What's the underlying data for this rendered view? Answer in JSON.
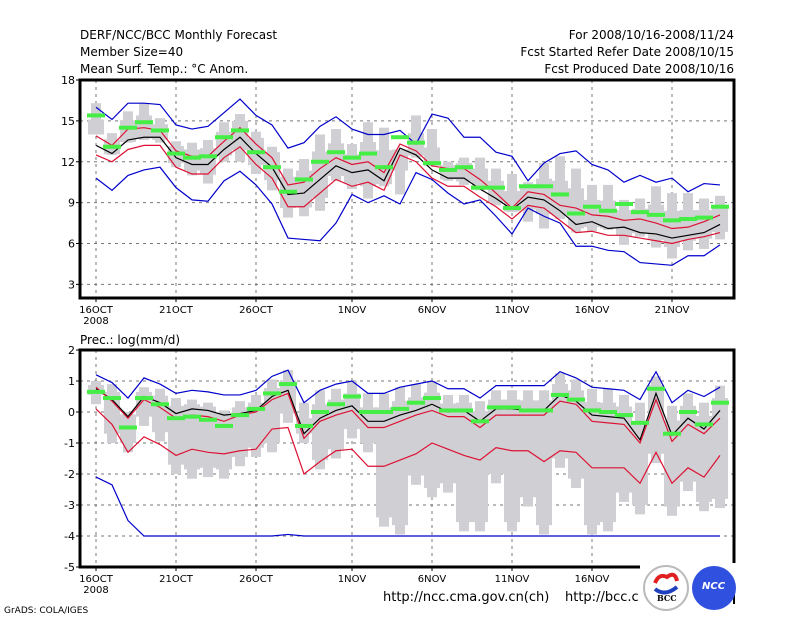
{
  "header": {
    "title": "DERF/NCC/BCC Monthly Forecast",
    "member_size": "Member Size=40",
    "variable": "Mean Surf. Temp.: °C Anom.",
    "period": "For 2008/10/16-2008/11/24",
    "started": "Fcst Started Refer Date 2008/10/15",
    "produced": "Fcst Produced Date 2008/10/16"
  },
  "footer": {
    "grads": "GrADS: COLA/IGES",
    "url_ncc": "http://ncc.cma.gov.cn(ch)",
    "url_bcc": "http://bcc.c",
    "logo_bcc": "BCC",
    "logo_ncc": "NCC"
  },
  "colors": {
    "max_min": "#0000cc",
    "percentile": "#dd1133",
    "median": "#000000",
    "ensemble_mean": "#44ee44",
    "box": "#d0d0d4"
  },
  "chart_data": [
    {
      "type": "line",
      "title": "Mean Surf. Temp.: °C Anom.",
      "xlabel": "",
      "ylabel": "°C",
      "ylim": [
        2,
        18
      ],
      "yticks": [
        3,
        6,
        9,
        12,
        15,
        18
      ],
      "xticks": [
        {
          "day": 0,
          "label": "16OCT",
          "sub": "2008"
        },
        {
          "day": 5,
          "label": "21OCT"
        },
        {
          "day": 10,
          "label": "26OCT"
        },
        {
          "day": 16,
          "label": "1NOV"
        },
        {
          "day": 21,
          "label": "6NOV"
        },
        {
          "day": 26,
          "label": "11NOV"
        },
        {
          "day": 31,
          "label": "16NOV"
        },
        {
          "day": 36,
          "label": "21NOV"
        }
      ],
      "grid": true,
      "x_days": 40,
      "series": [
        {
          "name": "max",
          "color": "#0000cc",
          "values": [
            16.0,
            15.1,
            16.3,
            16.3,
            16.2,
            14.7,
            14.4,
            14.6,
            15.6,
            16.6,
            15.4,
            14.7,
            13.0,
            13.4,
            14.6,
            15.3,
            14.4,
            14.0,
            14.0,
            14.3,
            13.3,
            15.5,
            15.2,
            13.8,
            13.8,
            12.7,
            12.4,
            10.6,
            11.9,
            12.6,
            12.8,
            11.8,
            11.4,
            10.5,
            11.0,
            10.5,
            10.8,
            9.8,
            10.4,
            10.3
          ]
        },
        {
          "name": "p90",
          "color": "#dd1133",
          "values": [
            13.9,
            13.2,
            14.4,
            14.5,
            14.3,
            12.8,
            12.4,
            12.4,
            13.5,
            14.5,
            13.3,
            12.3,
            10.3,
            10.5,
            11.5,
            12.3,
            11.8,
            12.0,
            11.2,
            13.3,
            12.8,
            11.7,
            11.5,
            11.5,
            10.7,
            9.7,
            8.6,
            9.8,
            9.6,
            8.8,
            8.6,
            8.1,
            8.0,
            7.7,
            7.8,
            7.5,
            7.1,
            7.2,
            7.6,
            8.1
          ]
        },
        {
          "name": "median",
          "color": "#000000",
          "values": [
            13.2,
            12.6,
            13.6,
            13.8,
            13.8,
            12.3,
            11.8,
            11.8,
            12.9,
            13.8,
            12.6,
            11.6,
            9.6,
            9.7,
            10.7,
            11.7,
            11.2,
            11.4,
            10.6,
            13.0,
            12.5,
            11.4,
            10.8,
            10.8,
            10.0,
            9.3,
            8.5,
            9.4,
            9.2,
            8.4,
            7.4,
            7.6,
            7.1,
            7.2,
            6.8,
            6.7,
            6.4,
            6.6,
            6.8,
            7.4
          ]
        },
        {
          "name": "p10",
          "color": "#dd1133",
          "values": [
            12.5,
            12.0,
            12.9,
            13.2,
            13.2,
            11.6,
            11.1,
            11.1,
            12.3,
            13.1,
            11.8,
            10.8,
            8.7,
            8.7,
            9.7,
            10.7,
            10.2,
            10.5,
            9.9,
            12.5,
            12.0,
            10.8,
            10.2,
            10.2,
            9.4,
            8.7,
            7.8,
            8.8,
            8.6,
            7.7,
            6.8,
            6.9,
            6.6,
            6.6,
            6.4,
            6.2,
            6.0,
            6.3,
            6.5,
            6.8
          ]
        },
        {
          "name": "min",
          "color": "#0000cc",
          "values": [
            10.8,
            9.9,
            11.0,
            11.4,
            11.6,
            10.1,
            9.2,
            9.1,
            10.6,
            11.3,
            10.3,
            8.9,
            6.4,
            6.3,
            6.2,
            7.5,
            9.6,
            9.0,
            9.5,
            8.9,
            11.2,
            10.7,
            9.7,
            8.9,
            9.2,
            8.0,
            6.7,
            8.6,
            8.0,
            7.5,
            5.8,
            5.8,
            5.5,
            5.4,
            4.6,
            4.5,
            4.4,
            5.1,
            5.1,
            5.9
          ]
        },
        {
          "name": "ensemble_mean",
          "color": "#44ee44",
          "values": [
            15.4,
            13.1,
            14.5,
            14.9,
            14.3,
            12.6,
            12.3,
            12.4,
            13.8,
            14.3,
            12.7,
            11.6,
            9.8,
            10.7,
            12.0,
            12.7,
            12.3,
            12.6,
            11.6,
            13.8,
            13.4,
            11.9,
            11.4,
            11.6,
            10.1,
            10.1,
            8.6,
            10.2,
            10.2,
            9.6,
            8.2,
            8.7,
            8.4,
            8.9,
            8.3,
            8.1,
            7.7,
            7.8,
            7.9,
            8.7
          ]
        },
        {
          "name": "box_high",
          "values": [
            16.3,
            14.1,
            15.7,
            16.3,
            15.2,
            13.5,
            13.4,
            13.6,
            14.9,
            15.5,
            14.2,
            13.1,
            11.5,
            12.2,
            14.0,
            14.4,
            13.3,
            14.9,
            14.5,
            12.9,
            15.4,
            14.4,
            12.0,
            12.3,
            12.3,
            11.5,
            11.1,
            10.5,
            11.9,
            12.4,
            11.5,
            10.3,
            10.3,
            9.2,
            9.3,
            10.2,
            9.7,
            9.7,
            9.3,
            9.5
          ]
        },
        {
          "name": "box_low",
          "values": [
            14.0,
            12.5,
            13.4,
            13.6,
            13.4,
            11.6,
            11.0,
            10.4,
            12.0,
            12.0,
            11.1,
            9.9,
            7.9,
            8.0,
            8.4,
            10.6,
            10.0,
            9.3,
            10.2,
            9.6,
            12.3,
            11.7,
            10.6,
            10.3,
            9.9,
            8.8,
            8.3,
            7.6,
            7.1,
            7.8,
            6.8,
            6.9,
            7.0,
            5.9,
            6.5,
            5.7,
            4.9,
            5.5,
            5.6,
            6.3
          ]
        }
      ]
    },
    {
      "type": "line",
      "title": "Prec.: log(mm/d)",
      "xlabel": "",
      "ylabel": "log(mm/d)",
      "ylim": [
        -5,
        2
      ],
      "yticks": [
        -5,
        -4,
        -3,
        -2,
        -1,
        0,
        1,
        2
      ],
      "xticks": [
        {
          "day": 0,
          "label": "16OCT",
          "sub": "2008"
        },
        {
          "day": 5,
          "label": "21OCT"
        },
        {
          "day": 10,
          "label": "26OCT"
        },
        {
          "day": 16,
          "label": "1NOV"
        },
        {
          "day": 21,
          "label": "6NOV"
        },
        {
          "day": 26,
          "label": "11NOV"
        },
        {
          "day": 31,
          "label": "16NOV"
        }
      ],
      "grid": true,
      "x_days": 40,
      "series": [
        {
          "name": "max",
          "color": "#0000cc",
          "values": [
            1.2,
            0.95,
            0.45,
            1.1,
            0.9,
            0.6,
            0.7,
            0.65,
            0.55,
            0.55,
            0.7,
            1.15,
            1.35,
            0.3,
            0.7,
            0.9,
            1.0,
            0.6,
            0.6,
            0.8,
            0.9,
            1.0,
            0.75,
            0.75,
            0.45,
            0.85,
            0.85,
            0.85,
            0.85,
            1.3,
            1.1,
            0.8,
            0.75,
            0.7,
            0.4,
            1.3,
            0.3,
            0.7,
            0.5,
            0.8
          ]
        },
        {
          "name": "p90",
          "color": "#000000",
          "label": "median",
          "values": [
            0.75,
            0.4,
            -0.15,
            0.5,
            0.3,
            -0.05,
            0.1,
            0.05,
            -0.1,
            -0.05,
            0.05,
            0.5,
            0.7,
            -0.7,
            -0.2,
            0.05,
            0.2,
            -0.3,
            -0.3,
            -0.1,
            0.05,
            0.25,
            0.0,
            0.05,
            -0.3,
            0.1,
            0.1,
            0.05,
            0.05,
            0.55,
            0.35,
            -0.1,
            -0.15,
            -0.2,
            -0.9,
            0.6,
            -0.75,
            -0.2,
            -0.55,
            0.05
          ]
        },
        {
          "name": "p_upper",
          "color": "#dd1133",
          "values": [
            0.8,
            0.35,
            -0.2,
            0.4,
            0.15,
            -0.2,
            -0.1,
            -0.15,
            -0.3,
            -0.1,
            0.0,
            0.4,
            0.6,
            -0.85,
            -0.3,
            -0.1,
            0.05,
            -0.5,
            -0.5,
            -0.3,
            -0.1,
            0.05,
            -0.15,
            -0.15,
            -0.5,
            -0.1,
            -0.1,
            -0.1,
            -0.1,
            0.35,
            0.25,
            -0.3,
            -0.35,
            -0.4,
            -1.0,
            0.4,
            -0.95,
            -0.4,
            -0.7,
            -0.2
          ]
        },
        {
          "name": "p_lower",
          "color": "#dd1133",
          "values": [
            0.1,
            -0.4,
            -1.3,
            -0.8,
            -1.05,
            -1.4,
            -1.2,
            -1.3,
            -1.35,
            -1.25,
            -1.2,
            -0.55,
            -0.5,
            -2.0,
            -1.6,
            -1.25,
            -1.2,
            -1.75,
            -1.75,
            -1.55,
            -1.35,
            -1.0,
            -1.2,
            -1.4,
            -1.55,
            -1.15,
            -1.25,
            -1.25,
            -1.6,
            -1.25,
            -1.3,
            -1.8,
            -1.8,
            -1.8,
            -2.3,
            -1.3,
            -2.3,
            -1.8,
            -2.1,
            -1.4
          ]
        },
        {
          "name": "min",
          "color": "#0000cc",
          "values": [
            -2.1,
            -2.35,
            -3.5,
            -4.0,
            -4.0,
            -4.0,
            -4.0,
            -4.0,
            -4.0,
            -4.0,
            -4.0,
            -4.0,
            -3.95,
            -4.0,
            -4.0,
            -4.0,
            -4.0,
            -4.0,
            -4.0,
            -4.0,
            -4.0,
            -4.0,
            -4.0,
            -4.0,
            -4.0,
            -4.0,
            -4.0,
            -4.0,
            -4.0,
            -4.0,
            -4.0,
            -4.0,
            -4.0,
            -4.0,
            -4.0,
            -4.0,
            -4.0,
            -4.0,
            -4.0,
            -4.0
          ]
        },
        {
          "name": "ensemble_mean",
          "color": "#44ee44",
          "values": [
            0.65,
            0.45,
            -0.5,
            0.45,
            0.25,
            -0.2,
            -0.15,
            -0.25,
            -0.45,
            -0.1,
            0.1,
            0.6,
            0.9,
            -0.45,
            0.0,
            0.25,
            0.5,
            0.0,
            0.0,
            0.1,
            0.3,
            0.45,
            0.05,
            0.05,
            -0.3,
            0.15,
            0.15,
            0.05,
            0.05,
            0.55,
            0.4,
            0.05,
            0.0,
            -0.1,
            -0.35,
            0.75,
            -0.7,
            0.0,
            -0.4,
            0.3
          ]
        },
        {
          "name": "box_high",
          "values": [
            1.0,
            0.9,
            0.0,
            0.8,
            0.75,
            0.45,
            0.4,
            0.3,
            0.05,
            0.35,
            0.55,
            1.05,
            1.35,
            0.3,
            0.7,
            0.75,
            1.0,
            0.6,
            0.6,
            0.8,
            0.9,
            1.0,
            0.55,
            0.55,
            0.35,
            0.7,
            0.7,
            0.7,
            0.7,
            1.25,
            1.05,
            0.75,
            0.75,
            0.55,
            0.3,
            1.15,
            0.2,
            0.6,
            0.3,
            0.85
          ]
        },
        {
          "name": "box_low",
          "values": [
            0.25,
            -1.0,
            -1.3,
            -0.45,
            -0.95,
            -2.0,
            -2.15,
            -2.1,
            -2.15,
            -1.75,
            -1.45,
            -1.3,
            -0.35,
            -1.0,
            -1.85,
            -1.5,
            -0.85,
            -1.3,
            -3.7,
            -3.95,
            -2.35,
            -2.75,
            -2.6,
            -3.85,
            -3.85,
            -2.3,
            -3.85,
            -3.05,
            -3.95,
            -1.8,
            -2.45,
            -3.95,
            -3.85,
            -2.9,
            -3.3,
            -1.65,
            -3.35,
            -2.55,
            -3.2,
            -3.1
          ]
        }
      ]
    }
  ]
}
